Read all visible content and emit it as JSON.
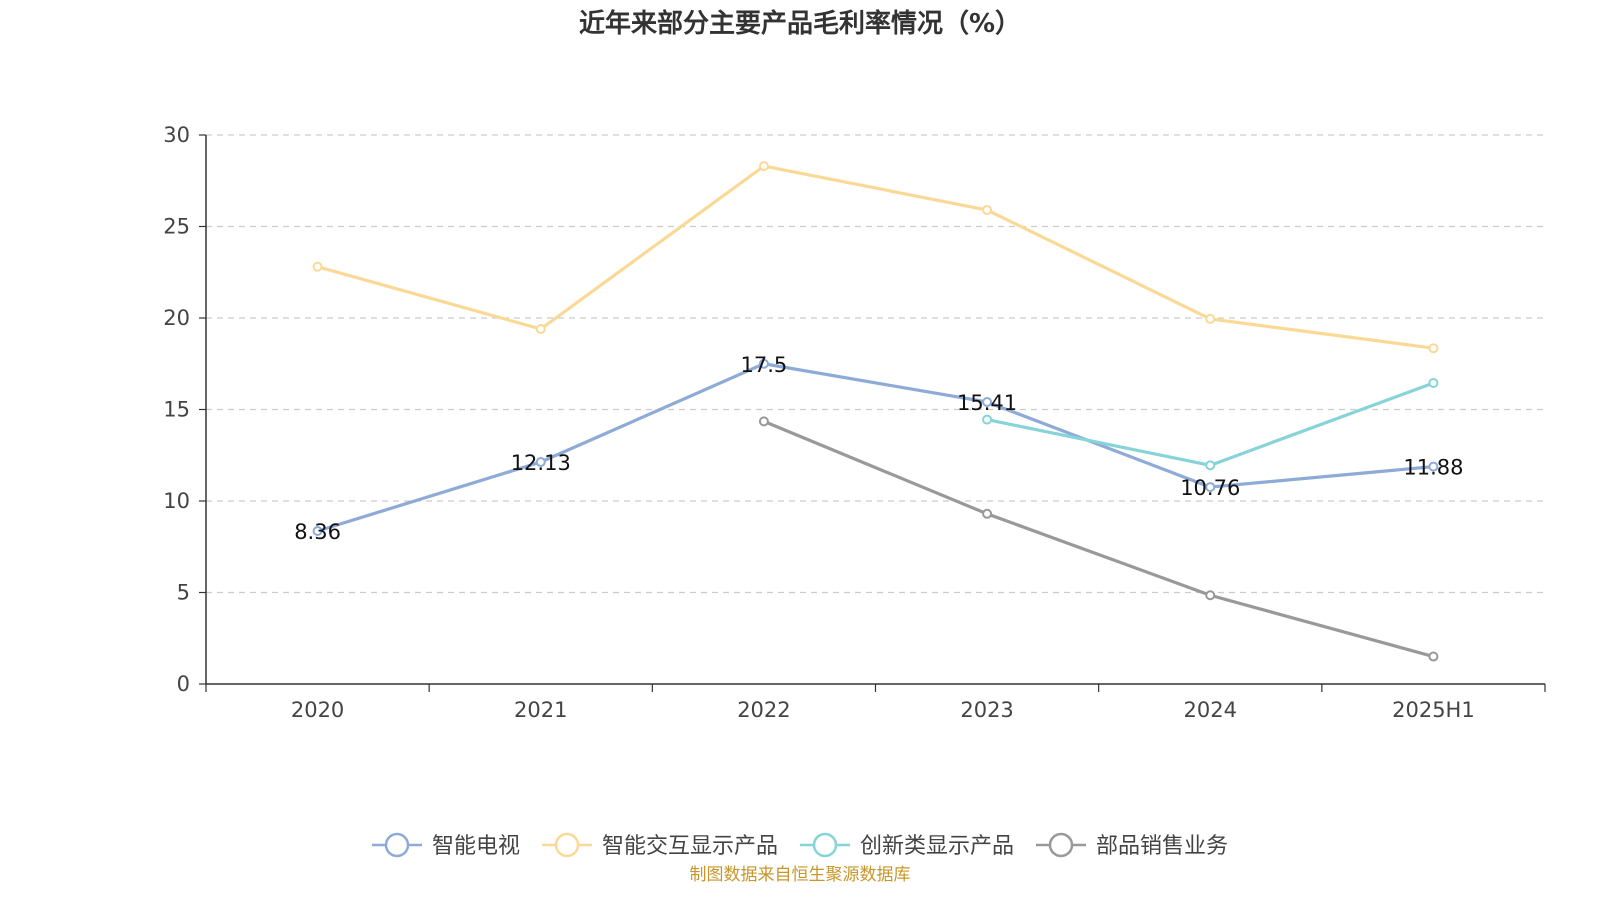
{
  "chart_data": {
    "type": "line",
    "title": "近年来部分主要产品毛利率情况（%）",
    "categories": [
      "2020",
      "2021",
      "2022",
      "2023",
      "2024",
      "2025H1"
    ],
    "ylim": [
      0,
      30
    ],
    "yticks": [
      "0",
      "5",
      "10",
      "15",
      "20",
      "25",
      "30"
    ],
    "grid": true,
    "legend_position": "bottom",
    "series": [
      {
        "name": "智能电视",
        "color": "#8eaad6",
        "labeled": true,
        "values": [
          8.36,
          12.13,
          17.5,
          15.41,
          10.76,
          11.88
        ]
      },
      {
        "name": "智能交互显示产品",
        "color": "#fad996",
        "labeled": false,
        "values": [
          22.8,
          19.4,
          28.3,
          25.9,
          19.95,
          18.35
        ]
      },
      {
        "name": "创新类显示产品",
        "color": "#86d4d8",
        "labeled": false,
        "values": [
          null,
          null,
          null,
          14.45,
          11.95,
          16.45
        ]
      },
      {
        "name": "部品销售业务",
        "color": "#999999",
        "labeled": false,
        "values": [
          null,
          null,
          14.35,
          9.3,
          4.85,
          1.5
        ]
      }
    ],
    "data_labels": [
      "8.36",
      "12.13",
      "17.5",
      "15.41",
      "10.76",
      "11.88"
    ]
  },
  "source": {
    "text": "制图数据来自恒生聚源数据库",
    "color": "#c8962a"
  }
}
